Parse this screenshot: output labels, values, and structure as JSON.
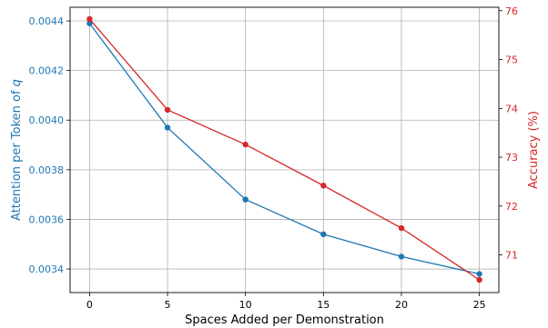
{
  "chart_data": {
    "type": "line",
    "xlabel": "Spaces Added per Demonstration",
    "ylabel_left": "Attention per Token of ",
    "ylabel_left_var": "q",
    "ylabel_right": "Accuracy (%)",
    "x": [
      0,
      5,
      10,
      15,
      20,
      25
    ],
    "xlim": [
      -1.25,
      26.25
    ],
    "xticks": [
      0,
      5,
      10,
      15,
      20,
      25
    ],
    "left_axis": {
      "ylim": [
        0.003305,
        0.004455
      ],
      "ticks": [
        0.0034,
        0.0036,
        0.0038,
        0.004,
        0.0042,
        0.0044
      ],
      "tick_labels": [
        "0.0034",
        "0.0036",
        "0.0038",
        "0.0040",
        "0.0042",
        "0.0044"
      ],
      "color": "#1f77b4"
    },
    "right_axis": {
      "ylim": [
        70.23,
        76.07
      ],
      "ticks": [
        71,
        72,
        73,
        74,
        75,
        76
      ],
      "tick_labels": [
        "71",
        "72",
        "73",
        "74",
        "75",
        "76"
      ],
      "color": "#d62728"
    },
    "series": [
      {
        "axis": "left",
        "color": "#1f77b4",
        "values": [
          0.00439,
          0.00397,
          0.00368,
          0.00354,
          0.00345,
          0.00338
        ]
      },
      {
        "axis": "right",
        "color": "#d62728",
        "values": [
          75.83,
          73.97,
          73.26,
          72.42,
          71.55,
          70.49
        ]
      }
    ],
    "grid": true
  }
}
